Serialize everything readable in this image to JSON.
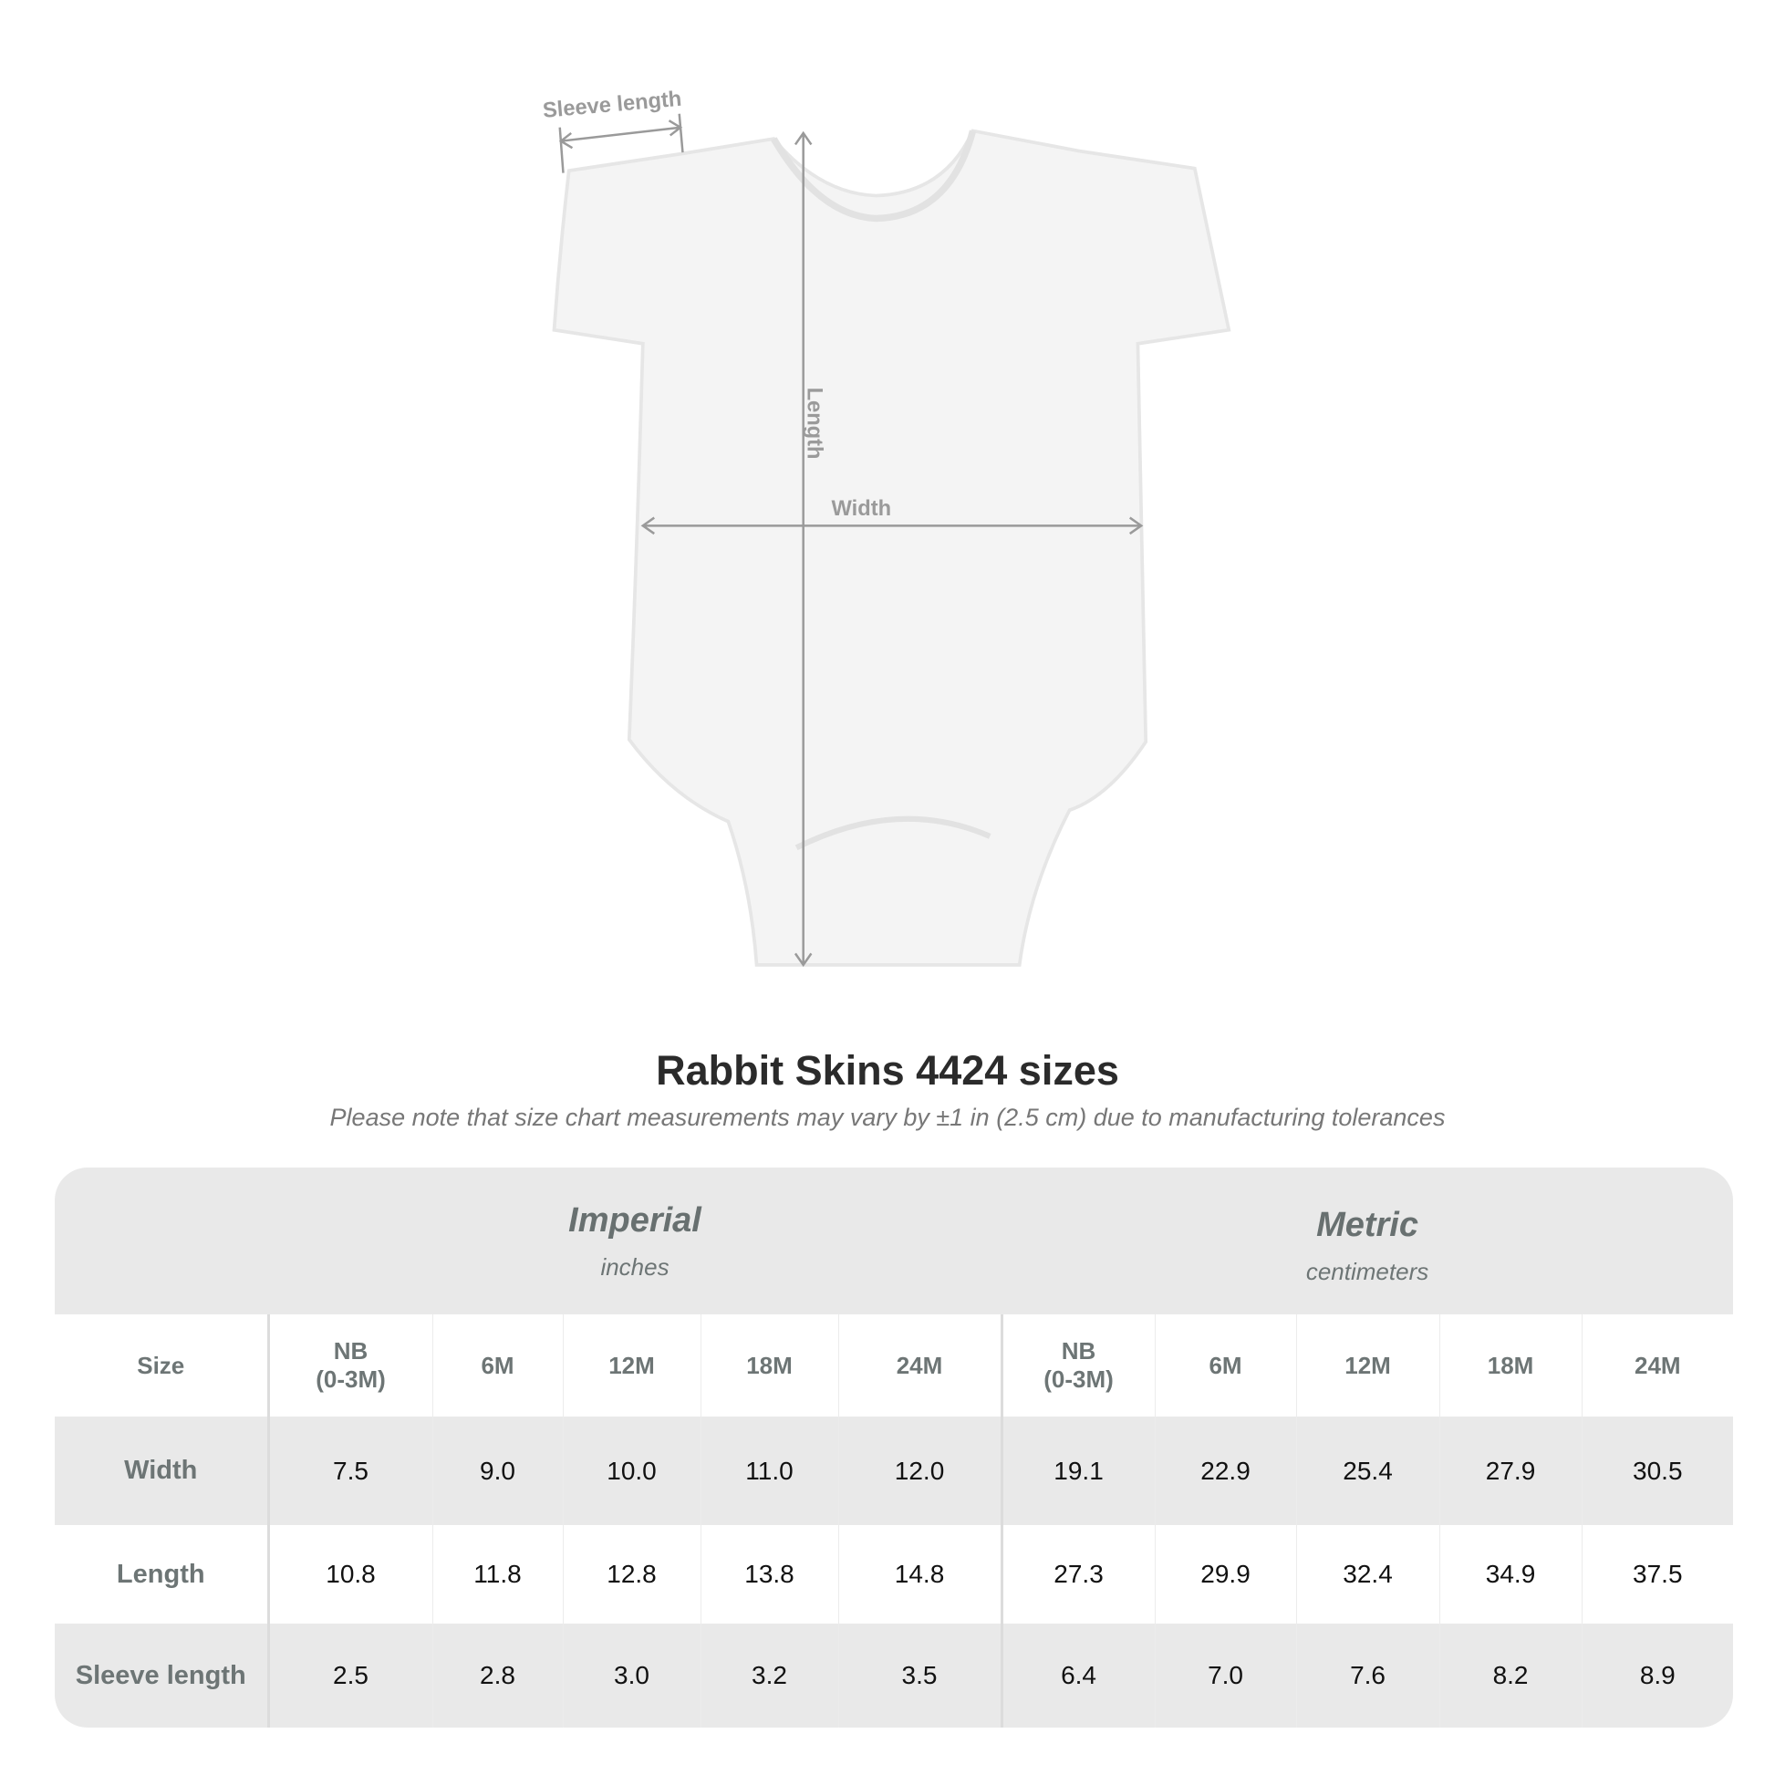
{
  "diagram": {
    "labels": {
      "sleeve": "Sleeve length",
      "length": "Length",
      "width": "Width"
    },
    "colors": {
      "measure_lines": "#9a9a9a",
      "garment": "#f4f4f4"
    }
  },
  "title": "Rabbit Skins 4424 sizes",
  "subtitle": "Please note that size chart measurements may vary by ±1 in (2.5 cm) due to manufacturing tolerances",
  "table": {
    "imperial": {
      "label": "Imperial",
      "unit": "inches"
    },
    "metric": {
      "label": "Metric",
      "unit": "centimeters"
    },
    "size_label": "Size",
    "sizes": [
      "NB\n(0-3M)",
      "6M",
      "12M",
      "18M",
      "24M"
    ],
    "rows": [
      {
        "label": "Width",
        "imperial": [
          "7.5",
          "9.0",
          "10.0",
          "11.0",
          "12.0"
        ],
        "metric": [
          "19.1",
          "22.9",
          "25.4",
          "27.9",
          "30.5"
        ]
      },
      {
        "label": "Length",
        "imperial": [
          "10.8",
          "11.8",
          "12.8",
          "13.8",
          "14.8"
        ],
        "metric": [
          "27.3",
          "29.9",
          "32.4",
          "34.9",
          "37.5"
        ]
      },
      {
        "label": "Sleeve length",
        "imperial": [
          "2.5",
          "2.8",
          "3.0",
          "3.2",
          "3.5"
        ],
        "metric": [
          "6.4",
          "7.0",
          "7.6",
          "8.2",
          "8.9"
        ]
      }
    ],
    "colors": {
      "band": "#e9e9e9",
      "header_text": "#687070"
    }
  }
}
